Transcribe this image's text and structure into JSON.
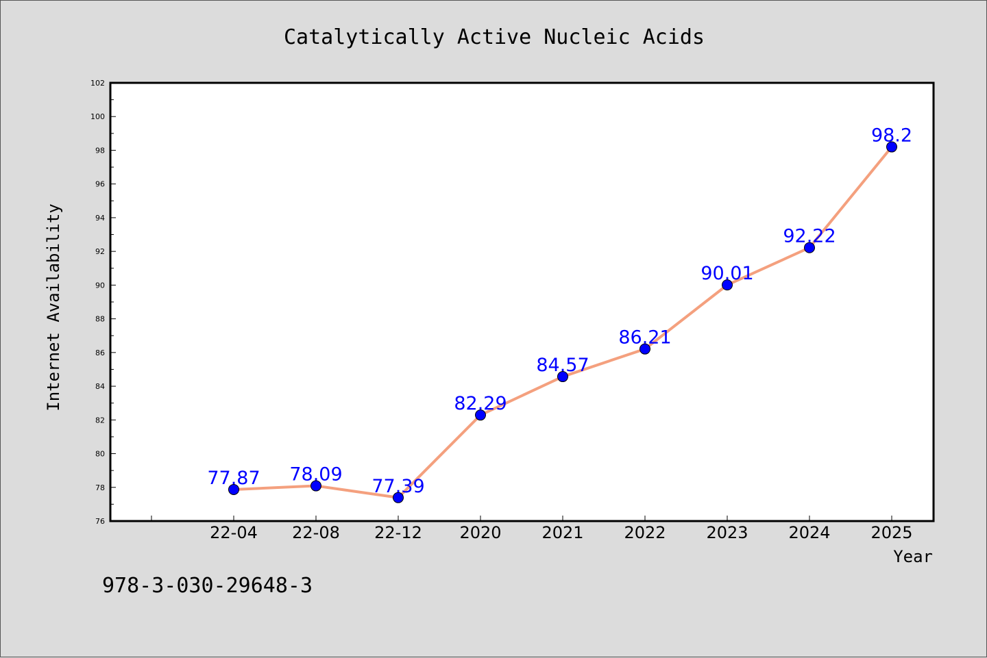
{
  "chart_data": {
    "type": "line",
    "title": "Catalytically Active Nucleic Acids",
    "xlabel": "Year",
    "ylabel": "Internet Availability",
    "categories": [
      "22-04",
      "22-08",
      "22-12",
      "2020",
      "2021",
      "2022",
      "2023",
      "2024",
      "2025"
    ],
    "series": [
      {
        "values": [
          77.87,
          78.09,
          77.39,
          82.29,
          84.57,
          86.21,
          90.01,
          92.22,
          98.2
        ],
        "labels": [
          "77.87",
          "78.09",
          "77.39",
          "82.29",
          "84.57",
          "86.21",
          "90.01",
          "92.22",
          "98.2"
        ],
        "line_color": "#f4a07e",
        "marker_color": "#0000ff"
      }
    ],
    "ylim": [
      76,
      102
    ],
    "yticks": [
      76,
      78,
      80,
      82,
      84,
      86,
      88,
      90,
      92,
      94,
      96,
      98,
      100,
      102
    ],
    "grid": false
  },
  "annotation": "978-3-030-29648-3"
}
